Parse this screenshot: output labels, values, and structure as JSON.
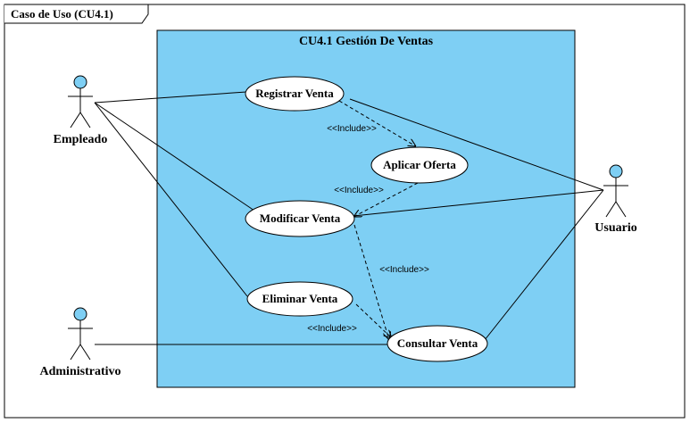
{
  "frame": {
    "title": "Caso de Uso (CU4.1)"
  },
  "system": {
    "title": "CU4.1 Gestión De Ventas",
    "fill": "#7ecff4"
  },
  "colors": {
    "actor_head": "#7ecff4",
    "use_case_fill": "#ffffff",
    "line": "#000000"
  },
  "actors": {
    "empleado": "Empleado",
    "administrativo": "Administrativo",
    "usuario": "Usuario"
  },
  "use_cases": {
    "registrar": "Registrar Venta",
    "aplicar": "Aplicar Oferta",
    "modificar": "Modificar Venta",
    "eliminar": "Eliminar Venta",
    "consultar": "Consultar Venta"
  },
  "include_label": "<<Include>>"
}
